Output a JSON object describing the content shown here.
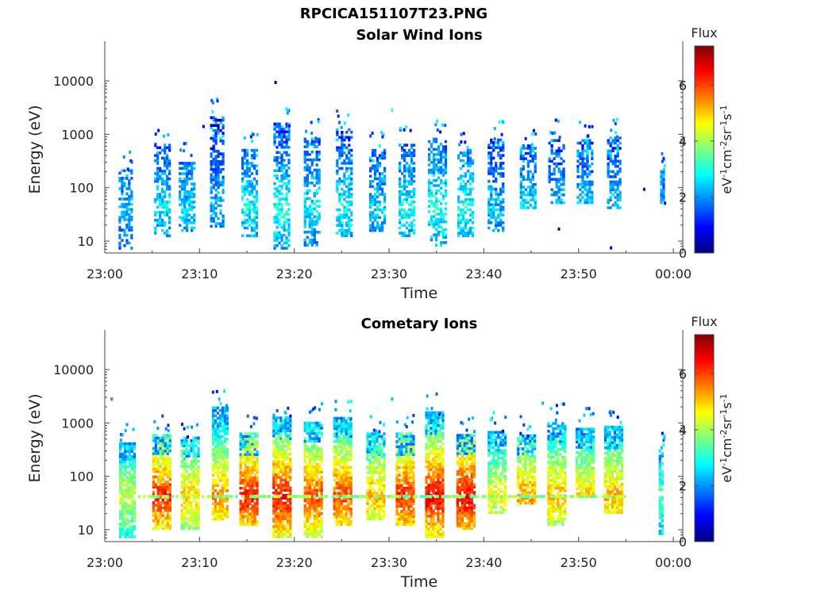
{
  "figure": {
    "title": "RPCICA151107T23.PNG"
  },
  "colormap": {
    "name": "jet",
    "stops": [
      "#00007f",
      "#0000ff",
      "#007fff",
      "#00ffff",
      "#7fff7f",
      "#ffff00",
      "#ff7f00",
      "#ff0000",
      "#7f0000"
    ]
  },
  "chart_data": [
    {
      "type": "heatmap",
      "title": "Solar Wind Ions",
      "xlabel": "Time",
      "ylabel": "Energy (eV)",
      "xlim": [
        "23:00",
        "00:01"
      ],
      "x_ticks": [
        "23:00",
        "23:10",
        "23:20",
        "23:30",
        "23:40",
        "23:50",
        "00:00"
      ],
      "y_scale": "log",
      "ylim": [
        6,
        45000
      ],
      "y_ticks": [
        "10",
        "100",
        "1000",
        "10000"
      ],
      "colorbar": {
        "title": "Flux",
        "label": "eV-1cm-2sr-1s-1",
        "range": [
          0,
          7.4
        ],
        "ticks": [
          "0",
          "2",
          "4",
          "6"
        ]
      },
      "bursts": [
        {
          "t": 2.1,
          "w": 1.3,
          "emax": 200,
          "emin": 7,
          "level": 2.2,
          "sparse": 0.45
        },
        {
          "t": 6.0,
          "w": 1.6,
          "emax": 600,
          "emin": 12,
          "level": 2.6,
          "sparse": 0.45
        },
        {
          "t": 8.6,
          "w": 1.6,
          "emax": 300,
          "emin": 15,
          "level": 2.5,
          "sparse": 0.35
        },
        {
          "t": 11.8,
          "w": 1.4,
          "emax": 2000,
          "emin": 18,
          "level": 2.3,
          "sparse": 0.4
        },
        {
          "t": 15.2,
          "w": 1.6,
          "emax": 500,
          "emin": 12,
          "level": 2.8,
          "sparse": 0.45
        },
        {
          "t": 18.6,
          "w": 1.6,
          "emax": 1500,
          "emin": 7,
          "level": 3.0,
          "sparse": 0.45
        },
        {
          "t": 21.8,
          "w": 1.6,
          "emax": 800,
          "emin": 8,
          "level": 2.7,
          "sparse": 0.45
        },
        {
          "t": 25.2,
          "w": 1.6,
          "emax": 1200,
          "emin": 12,
          "level": 2.8,
          "sparse": 0.45
        },
        {
          "t": 28.7,
          "w": 1.6,
          "emax": 500,
          "emin": 15,
          "level": 2.5,
          "sparse": 0.4
        },
        {
          "t": 31.8,
          "w": 1.6,
          "emax": 600,
          "emin": 12,
          "level": 2.8,
          "sparse": 0.4
        },
        {
          "t": 35.0,
          "w": 1.8,
          "emax": 800,
          "emin": 8,
          "level": 3.0,
          "sparse": 0.5
        },
        {
          "t": 38.0,
          "w": 1.6,
          "emax": 500,
          "emin": 12,
          "level": 3.0,
          "sparse": 0.45
        },
        {
          "t": 41.2,
          "w": 1.6,
          "emax": 800,
          "emin": 15,
          "level": 2.3,
          "sparse": 0.4
        },
        {
          "t": 44.6,
          "w": 1.6,
          "emax": 600,
          "emin": 40,
          "level": 2.6,
          "sparse": 0.4
        },
        {
          "t": 47.6,
          "w": 1.6,
          "emax": 800,
          "emin": 50,
          "level": 2.4,
          "sparse": 0.4
        },
        {
          "t": 50.6,
          "w": 1.6,
          "emax": 800,
          "emin": 50,
          "level": 2.5,
          "sparse": 0.4
        },
        {
          "t": 53.7,
          "w": 1.4,
          "emax": 900,
          "emin": 40,
          "level": 2.4,
          "sparse": 0.45
        },
        {
          "t": 58.8,
          "w": 0.4,
          "emax": 200,
          "emin": 50,
          "level": 2.2,
          "sparse": 0.1
        }
      ],
      "isolated_points": [
        {
          "t": 17.9,
          "e": 10000,
          "level": 0.4
        },
        {
          "t": 30.2,
          "e": 3000,
          "level": 3.0
        },
        {
          "t": 10.3,
          "e": 1500,
          "level": 0.6
        },
        {
          "t": 53.3,
          "e": 8,
          "level": 0.8
        },
        {
          "t": 47.8,
          "e": 18,
          "level": 0.7
        },
        {
          "t": 56.8,
          "e": 100,
          "level": 0.6
        },
        {
          "t": 59.0,
          "e": 55,
          "level": 1.0
        }
      ]
    },
    {
      "type": "heatmap",
      "title": "Cometary Ions",
      "xlabel": "Time",
      "ylabel": "Energy (eV)",
      "xlim": [
        "23:00",
        "00:01"
      ],
      "x_ticks": [
        "23:00",
        "23:10",
        "23:20",
        "23:30",
        "23:40",
        "23:50",
        "00:00"
      ],
      "y_scale": "log",
      "ylim": [
        6,
        45000
      ],
      "y_ticks": [
        "10",
        "100",
        "1000",
        "10000"
      ],
      "colorbar": {
        "title": "Flux",
        "label": "eV-1cm-2sr-1s-1",
        "range": [
          0,
          7.4
        ],
        "ticks": [
          "0",
          "2",
          "4",
          "6"
        ]
      },
      "bursts": [
        {
          "t": 2.3,
          "w": 1.6,
          "emax": 400,
          "emin": 7,
          "level": 4.2,
          "sparse": 0.2
        },
        {
          "t": 5.9,
          "w": 1.8,
          "emax": 600,
          "emin": 10,
          "level": 6.2,
          "sparse": 0.15
        },
        {
          "t": 8.9,
          "w": 1.8,
          "emax": 500,
          "emin": 10,
          "level": 5.0,
          "sparse": 0.2
        },
        {
          "t": 12.1,
          "w": 1.6,
          "emax": 2000,
          "emin": 15,
          "level": 5.5,
          "sparse": 0.2
        },
        {
          "t": 15.1,
          "w": 1.8,
          "emax": 600,
          "emin": 12,
          "level": 6.4,
          "sparse": 0.15
        },
        {
          "t": 18.6,
          "w": 1.8,
          "emax": 1200,
          "emin": 7,
          "level": 6.5,
          "sparse": 0.15
        },
        {
          "t": 21.9,
          "w": 1.8,
          "emax": 1000,
          "emin": 7,
          "level": 6.0,
          "sparse": 0.15
        },
        {
          "t": 25.0,
          "w": 1.8,
          "emax": 1200,
          "emin": 12,
          "level": 6.0,
          "sparse": 0.15
        },
        {
          "t": 28.5,
          "w": 1.8,
          "emax": 600,
          "emin": 15,
          "level": 5.2,
          "sparse": 0.2
        },
        {
          "t": 31.6,
          "w": 1.8,
          "emax": 600,
          "emin": 12,
          "level": 6.2,
          "sparse": 0.15
        },
        {
          "t": 34.8,
          "w": 2.0,
          "emax": 1500,
          "emin": 7,
          "level": 6.6,
          "sparse": 0.15
        },
        {
          "t": 38.0,
          "w": 1.8,
          "emax": 600,
          "emin": 10,
          "level": 6.6,
          "sparse": 0.15
        },
        {
          "t": 41.3,
          "w": 1.8,
          "emax": 700,
          "emin": 20,
          "level": 4.6,
          "sparse": 0.2
        },
        {
          "t": 44.4,
          "w": 1.8,
          "emax": 600,
          "emin": 30,
          "level": 5.4,
          "sparse": 0.2
        },
        {
          "t": 47.6,
          "w": 1.8,
          "emax": 1000,
          "emin": 12,
          "level": 5.2,
          "sparse": 0.2
        },
        {
          "t": 50.6,
          "w": 1.8,
          "emax": 800,
          "emin": 40,
          "level": 5.0,
          "sparse": 0.2
        },
        {
          "t": 53.6,
          "w": 1.8,
          "emax": 800,
          "emin": 20,
          "level": 5.2,
          "sparse": 0.2
        },
        {
          "t": 58.7,
          "w": 0.5,
          "emax": 300,
          "emin": 8,
          "level": 3.4,
          "sparse": 0.15
        }
      ],
      "isolated_points": [
        {
          "t": 0.6,
          "e": 3000,
          "level": 2.0
        },
        {
          "t": 30.2,
          "e": 3000,
          "level": 2.3
        },
        {
          "t": 46.1,
          "e": 2500,
          "level": 2.2
        },
        {
          "t": 34.4,
          "e": 2000,
          "level": 2.0
        }
      ],
      "band": {
        "energy": 40,
        "level": 3.8,
        "from": 1.5,
        "to": 55.0
      }
    }
  ]
}
